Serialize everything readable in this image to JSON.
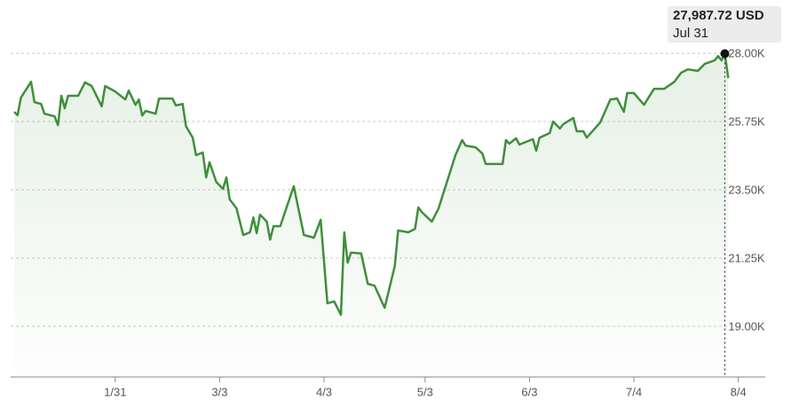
{
  "chart_data": {
    "type": "line",
    "x": [
      "1/1",
      "1/2",
      "1/3",
      "1/6",
      "1/7",
      "1/9",
      "1/10",
      "1/13",
      "1/14",
      "1/15",
      "1/16",
      "1/17",
      "1/20",
      "1/22",
      "1/24",
      "1/27",
      "1/28",
      "1/31",
      "2/3",
      "2/4",
      "2/6",
      "2/7",
      "2/8",
      "2/9",
      "2/12",
      "2/13",
      "2/17",
      "2/18",
      "2/20",
      "2/21",
      "2/23",
      "2/24",
      "2/26",
      "2/27",
      "2/28",
      "3/2",
      "3/4",
      "3/5",
      "3/6",
      "3/8",
      "3/10",
      "3/12",
      "3/13",
      "3/14",
      "3/15",
      "3/17",
      "3/18",
      "3/19",
      "3/21",
      "3/25",
      "3/28",
      "3/31",
      "4/2",
      "4/4",
      "4/6",
      "4/8",
      "4/9",
      "4/10",
      "4/11",
      "4/14",
      "4/16",
      "4/18",
      "4/21",
      "4/24",
      "4/25",
      "4/28",
      "4/30",
      "5/1",
      "5/2",
      "5/5",
      "5/7",
      "5/12",
      "5/14",
      "5/15",
      "5/18",
      "5/20",
      "5/21",
      "5/23",
      "5/26",
      "5/27",
      "5/28",
      "5/30",
      "5/31",
      "6/4",
      "6/5",
      "6/6",
      "6/9",
      "6/10",
      "6/12",
      "6/13",
      "6/16",
      "6/17",
      "6/19",
      "6/20",
      "6/24",
      "6/27",
      "6/29",
      "7/1",
      "7/2",
      "7/4",
      "7/7",
      "7/10",
      "7/13",
      "7/16",
      "7/18",
      "7/20",
      "7/23",
      "7/25",
      "7/28",
      "7/29",
      "7/30",
      "7/31",
      "8/1"
    ],
    "values": [
      26070,
      25960,
      26540,
      27060,
      26390,
      26330,
      26010,
      25920,
      25630,
      26600,
      26190,
      26600,
      26600,
      27040,
      26920,
      26250,
      26920,
      26740,
      26480,
      26770,
      26300,
      26480,
      25950,
      26100,
      26010,
      26510,
      26510,
      26280,
      26330,
      25600,
      25220,
      24640,
      24730,
      23910,
      24410,
      23760,
      23530,
      23910,
      23180,
      22890,
      22010,
      22100,
      22590,
      22070,
      22680,
      22450,
      21860,
      22300,
      22300,
      23620,
      22010,
      21920,
      22510,
      19760,
      19820,
      19380,
      22100,
      21100,
      21430,
      21400,
      20400,
      20340,
      19610,
      20990,
      22160,
      22100,
      22210,
      22920,
      22770,
      22450,
      22890,
      24640,
      25140,
      24960,
      24900,
      24700,
      24350,
      24350,
      24350,
      25140,
      25020,
      25200,
      24990,
      25170,
      24790,
      25220,
      25370,
      25750,
      25520,
      25660,
      25870,
      25430,
      25430,
      25220,
      25720,
      26480,
      26510,
      26070,
      26690,
      26690,
      26300,
      26830,
      26830,
      27060,
      27360,
      27470,
      27420,
      27650,
      27770,
      27910,
      27770,
      27987.72,
      27180
    ],
    "color": "#3f8f3a",
    "xlim": [
      "1/1",
      "8/12"
    ],
    "xticks": [
      "1/31",
      "3/3",
      "4/3",
      "5/3",
      "6/3",
      "7/4",
      "8/4"
    ],
    "ylim": [
      17330,
      28880
    ],
    "yticks": [
      {
        "value": 19000,
        "label": "19.00K"
      },
      {
        "value": 21250,
        "label": "21.25K"
      },
      {
        "value": 23500,
        "label": "23.50K"
      },
      {
        "value": 25750,
        "label": "25.75K"
      },
      {
        "value": 28000,
        "label": "28.00K"
      }
    ],
    "grid": true,
    "tooltip": {
      "value_label": "27,987.72 USD",
      "date": "Jul 31"
    }
  }
}
